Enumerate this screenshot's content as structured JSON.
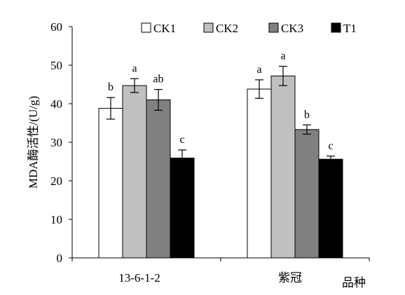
{
  "chart_data": {
    "type": "bar",
    "categories": [
      "13-6-1-2",
      "紫冠"
    ],
    "series": [
      {
        "name": "CK1",
        "color": "#ffffff",
        "values": [
          38.8,
          43.8
        ],
        "errors": [
          2.8,
          2.4
        ],
        "labels": [
          "b",
          "a"
        ]
      },
      {
        "name": "CK2",
        "color": "#c0c0c0",
        "values": [
          44.7,
          47.2
        ],
        "errors": [
          1.8,
          2.5
        ],
        "labels": [
          "a",
          "a"
        ]
      },
      {
        "name": "CK3",
        "color": "#808080",
        "values": [
          41.0,
          33.3
        ],
        "errors": [
          2.7,
          1.2
        ],
        "labels": [
          "ab",
          "b"
        ]
      },
      {
        "name": "T1",
        "color": "#000000",
        "values": [
          25.9,
          25.6
        ],
        "errors": [
          2.1,
          0.8
        ],
        "labels": [
          "c",
          "c"
        ]
      }
    ],
    "xlabel": "品种",
    "ylabel": "MDA酶活性/(U/g)",
    "ylim": [
      0,
      60
    ],
    "yticks": [
      0,
      10,
      20,
      30,
      40,
      50,
      60
    ],
    "grid": false,
    "legend_position": "top"
  }
}
